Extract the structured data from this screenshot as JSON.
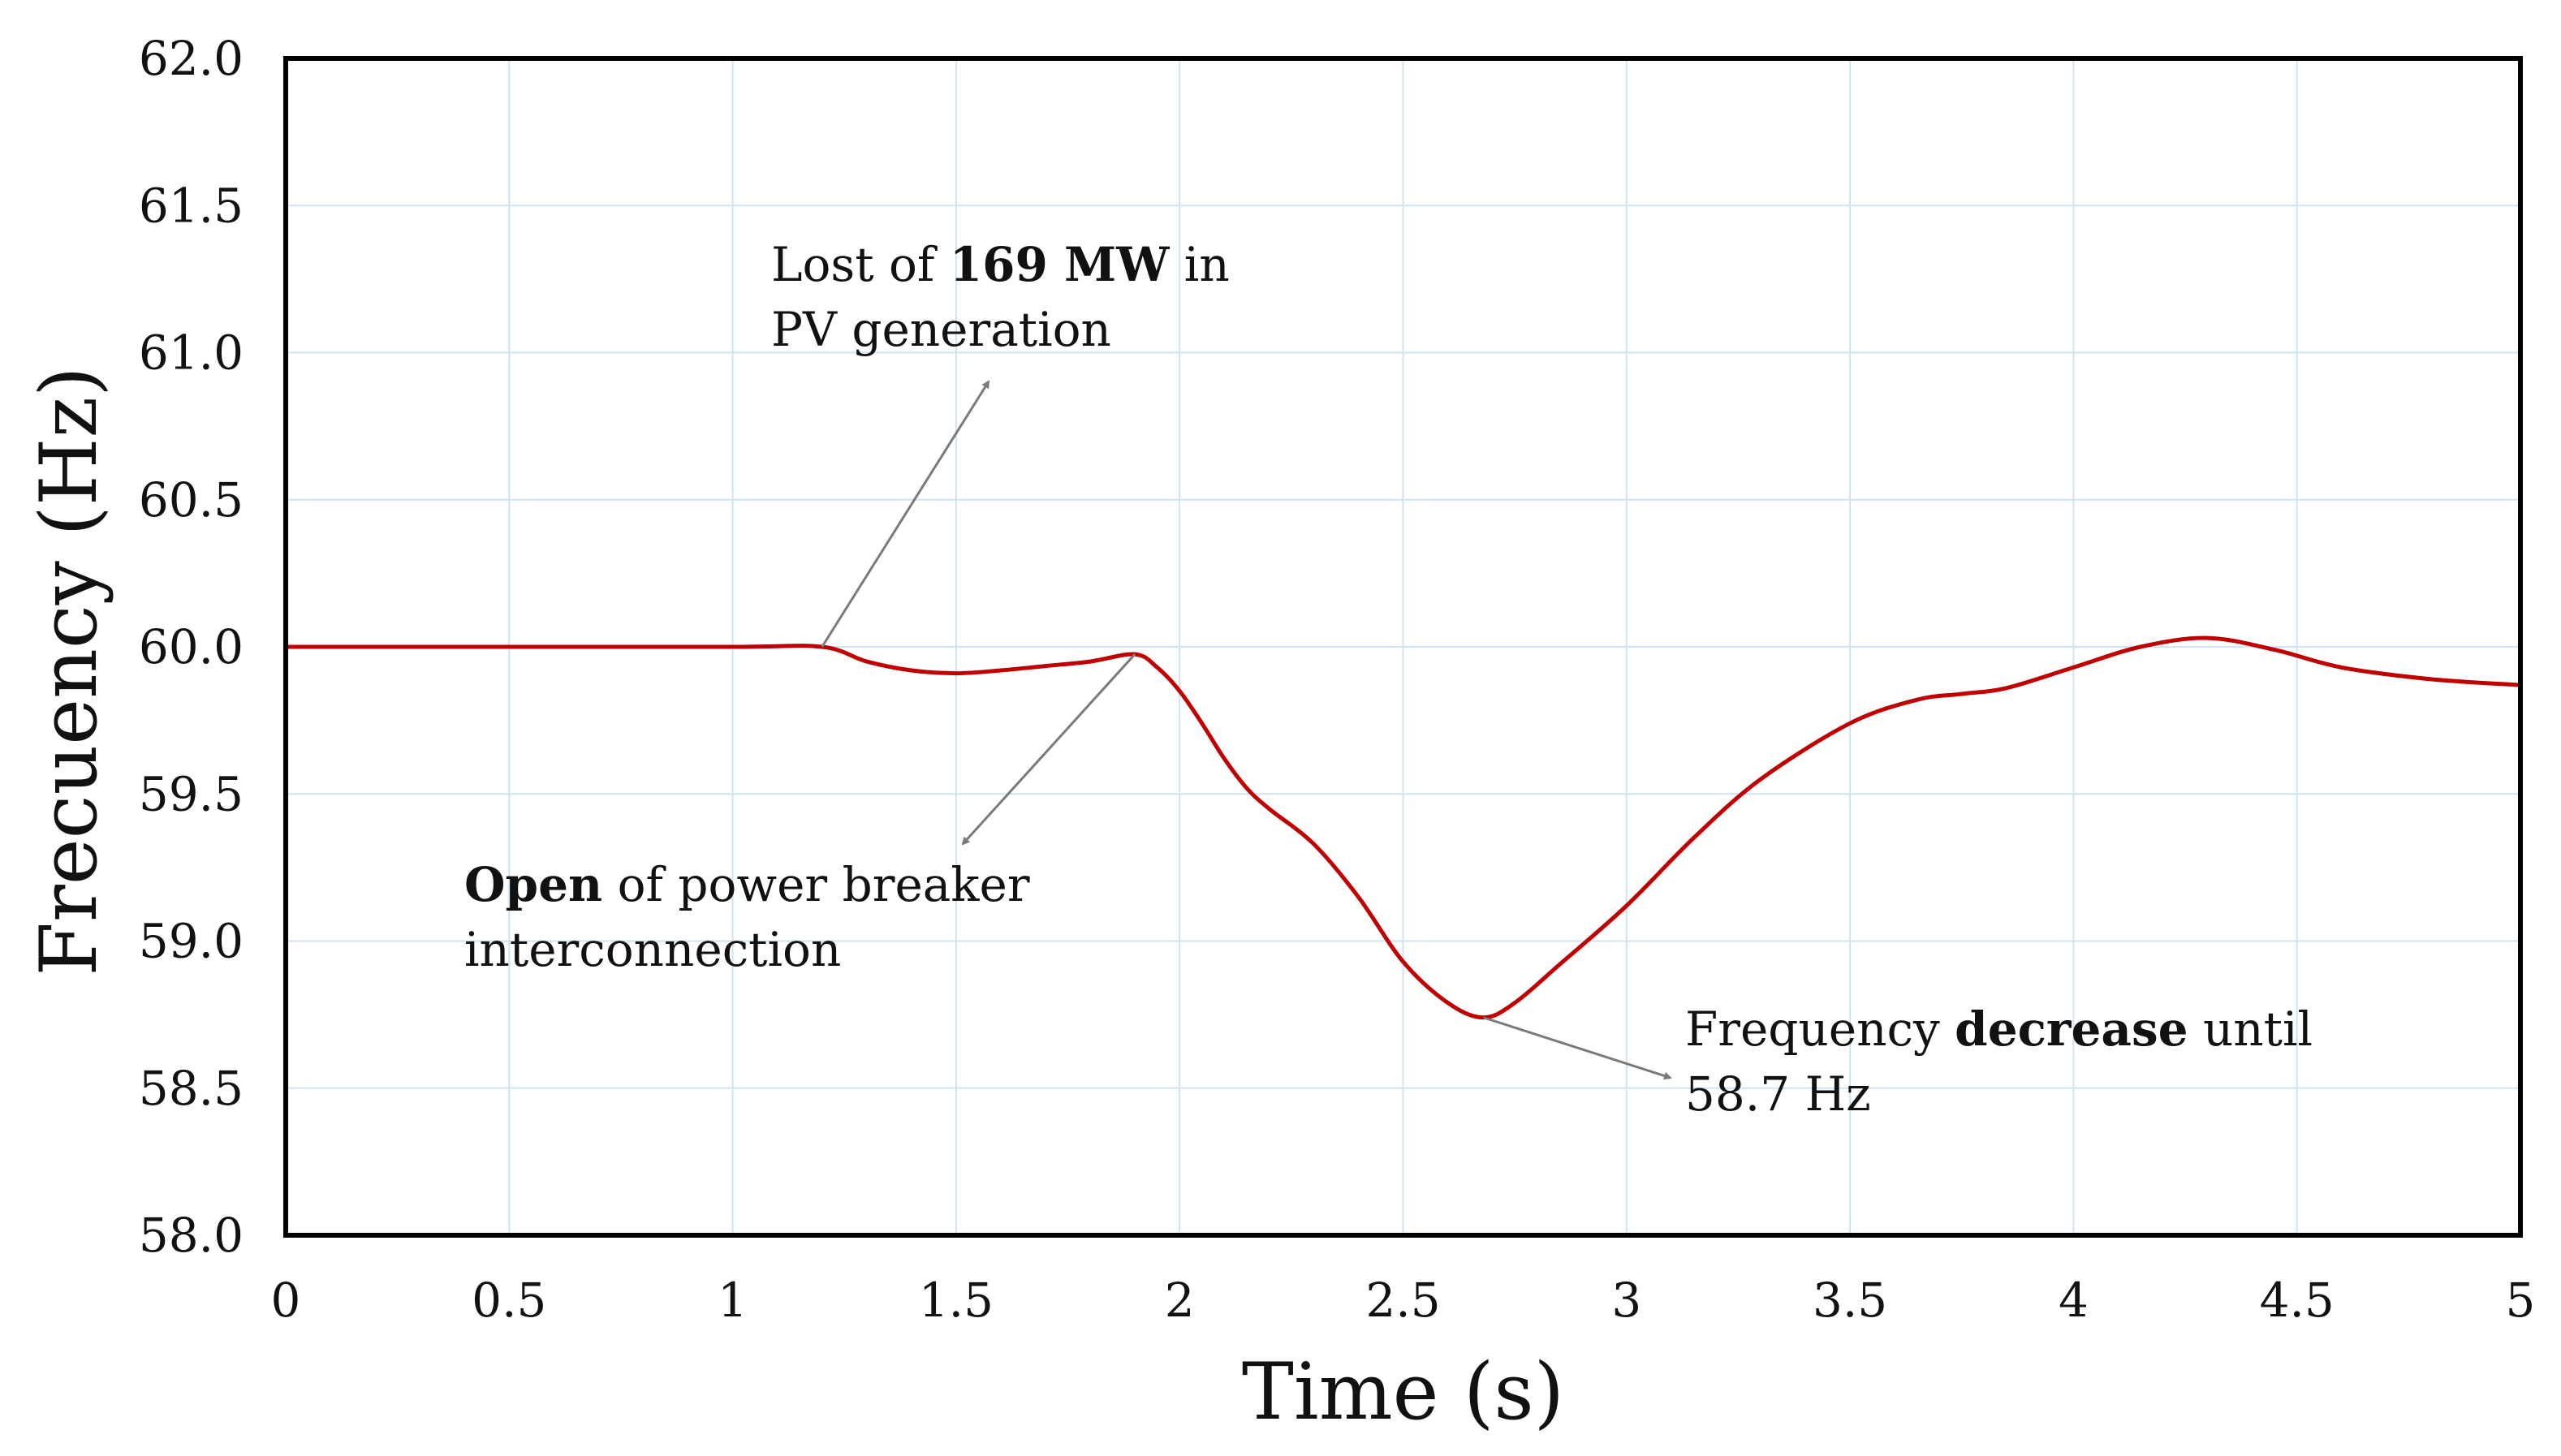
{
  "chart_data": {
    "type": "line",
    "xlabel": "Time (s)",
    "ylabel": "Frecuency (Hz)",
    "xlim": [
      0,
      5
    ],
    "ylim": [
      58.0,
      62.0
    ],
    "x_ticks": [
      0,
      0.5,
      1,
      1.5,
      2,
      2.5,
      3,
      3.5,
      4,
      4.5,
      5
    ],
    "x_tick_labels": [
      "0",
      "0.5",
      "1",
      "1.5",
      "2",
      "2.5",
      "3",
      "3.5",
      "4",
      "4.5",
      "5"
    ],
    "y_ticks": [
      58.0,
      58.5,
      59.0,
      59.5,
      60.0,
      60.5,
      61.0,
      61.5,
      62.0
    ],
    "y_tick_labels": [
      "58.0",
      "58.5",
      "59.0",
      "59.5",
      "60.0",
      "60.5",
      "61.0",
      "61.5",
      "62.0"
    ],
    "grid": true,
    "series": [
      {
        "name": "Frequency",
        "color": "#c00000",
        "x": [
          0,
          0.5,
          1.0,
          1.2,
          1.3,
          1.4,
          1.5,
          1.6,
          1.7,
          1.8,
          1.9,
          1.95,
          2.0,
          2.05,
          2.1,
          2.15,
          2.2,
          2.3,
          2.4,
          2.5,
          2.6,
          2.68,
          2.75,
          2.85,
          3.0,
          3.15,
          3.3,
          3.5,
          3.65,
          3.75,
          3.85,
          4.0,
          4.15,
          4.3,
          4.45,
          4.6,
          4.8,
          5.0
        ],
        "y": [
          60.0,
          60.0,
          60.0,
          60.0,
          59.95,
          59.92,
          59.91,
          59.92,
          59.935,
          59.95,
          59.975,
          59.93,
          59.85,
          59.74,
          59.62,
          59.52,
          59.45,
          59.33,
          59.15,
          58.93,
          58.79,
          58.74,
          58.79,
          58.92,
          59.12,
          59.35,
          59.55,
          59.74,
          59.82,
          59.84,
          59.86,
          59.93,
          60.0,
          60.03,
          59.99,
          59.93,
          59.89,
          59.87
        ]
      }
    ],
    "annotations": [
      {
        "id": "pv-loss",
        "point": [
          1.2,
          60.0
        ],
        "lines": [
          [
            {
              "text": "Lost of ",
              "bold": false
            },
            {
              "text": "169 MW",
              "bold": true
            },
            {
              "text": " in",
              "bold": false
            }
          ],
          [
            {
              "text": "PV generation",
              "bold": false
            }
          ]
        ]
      },
      {
        "id": "breaker-open",
        "point": [
          1.9,
          59.975
        ],
        "lines": [
          [
            {
              "text": "Open",
              "bold": true
            },
            {
              "text": " of power breaker",
              "bold": false
            }
          ],
          [
            {
              "text": "interconnection",
              "bold": false
            }
          ]
        ]
      },
      {
        "id": "freq-min",
        "point": [
          2.68,
          58.74
        ],
        "lines": [
          [
            {
              "text": "Frequency ",
              "bold": false
            },
            {
              "text": "decrease",
              "bold": true
            },
            {
              "text": " until",
              "bold": false
            }
          ],
          [
            {
              "text": "58.7 Hz",
              "bold": false
            }
          ]
        ]
      }
    ]
  }
}
